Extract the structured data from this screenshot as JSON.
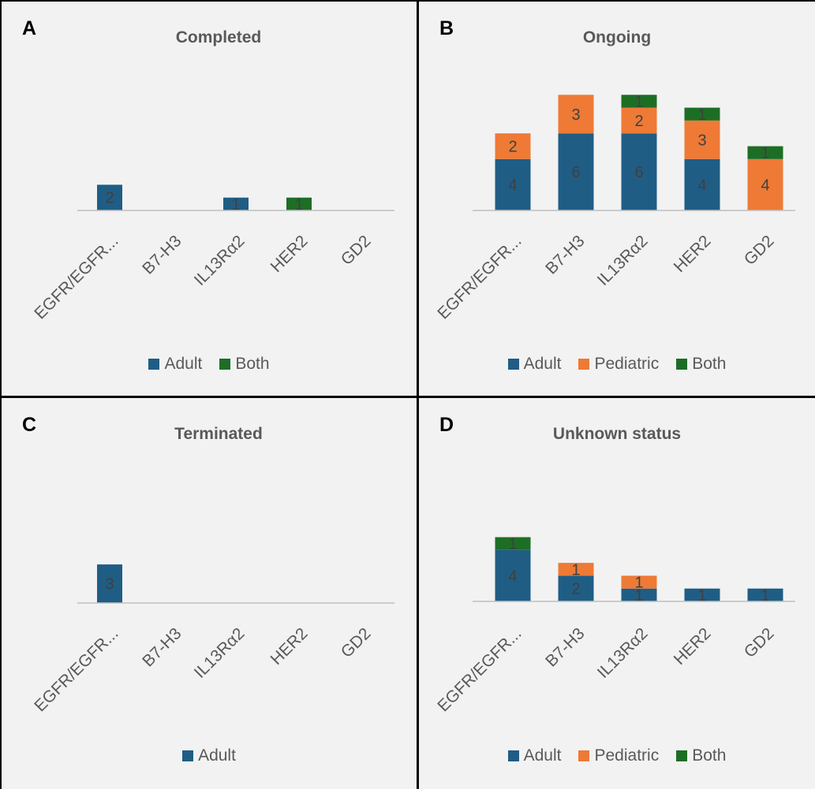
{
  "colors": {
    "adult": "#1f5d85",
    "pediatric": "#ee7a36",
    "both": "#1d6e25",
    "axis": "#bfbfbf",
    "text": "#595959",
    "label": "#404040"
  },
  "panels": [
    {
      "letter": "A",
      "title": "Completed",
      "legend": [
        {
          "key": "adult",
          "label": "Adult"
        },
        {
          "key": "both",
          "label": "Both"
        }
      ]
    },
    {
      "letter": "B",
      "title": "Ongoing",
      "legend": [
        {
          "key": "adult",
          "label": "Adult"
        },
        {
          "key": "pediatric",
          "label": "Pediatric"
        },
        {
          "key": "both",
          "label": "Both"
        }
      ]
    },
    {
      "letter": "C",
      "title": "Terminated",
      "legend": [
        {
          "key": "adult",
          "label": "Adult"
        }
      ]
    },
    {
      "letter": "D",
      "title": "Unknown status",
      "legend": [
        {
          "key": "adult",
          "label": "Adult"
        },
        {
          "key": "pediatric",
          "label": "Pediatric"
        },
        {
          "key": "both",
          "label": "Both"
        }
      ]
    }
  ],
  "chart_data": [
    {
      "type": "bar",
      "stacked": true,
      "title": "Completed",
      "categories": [
        "EGFR/EGFR...",
        "B7-H3",
        "IL13Rα2",
        "HER2",
        "GD2"
      ],
      "series": [
        {
          "name": "Adult",
          "key": "adult",
          "values": [
            2,
            0,
            1,
            0,
            0
          ]
        },
        {
          "name": "Both",
          "key": "both",
          "values": [
            0,
            0,
            0,
            1,
            0
          ]
        }
      ],
      "ylim": [
        0,
        10
      ],
      "legend": "bottom",
      "grid": false
    },
    {
      "type": "bar",
      "stacked": true,
      "title": "Ongoing",
      "categories": [
        "EGFR/EGFR...",
        "B7-H3",
        "IL13Rα2",
        "HER2",
        "GD2"
      ],
      "series": [
        {
          "name": "Adult",
          "key": "adult",
          "values": [
            4,
            6,
            6,
            4,
            0
          ]
        },
        {
          "name": "Pediatric",
          "key": "pediatric",
          "values": [
            2,
            3,
            2,
            3,
            4
          ]
        },
        {
          "name": "Both",
          "key": "both",
          "values": [
            0,
            0,
            1,
            1,
            1
          ]
        }
      ],
      "ylim": [
        0,
        10
      ],
      "legend": "bottom",
      "grid": false
    },
    {
      "type": "bar",
      "stacked": true,
      "title": "Terminated",
      "categories": [
        "EGFR/EGFR...",
        "B7-H3",
        "IL13Rα2",
        "HER2",
        "GD2"
      ],
      "series": [
        {
          "name": "Adult",
          "key": "adult",
          "values": [
            3,
            0,
            0,
            0,
            0
          ]
        }
      ],
      "ylim": [
        0,
        10
      ],
      "legend": "bottom",
      "grid": false
    },
    {
      "type": "bar",
      "stacked": true,
      "title": "Unknown status",
      "categories": [
        "EGFR/EGFR...",
        "B7-H3",
        "IL13Rα2",
        "HER2",
        "GD2"
      ],
      "series": [
        {
          "name": "Adult",
          "key": "adult",
          "values": [
            4,
            2,
            1,
            1,
            1
          ]
        },
        {
          "name": "Pediatric",
          "key": "pediatric",
          "values": [
            0,
            1,
            1,
            0,
            0
          ]
        },
        {
          "name": "Both",
          "key": "both",
          "values": [
            1,
            0,
            0,
            0,
            0
          ]
        }
      ],
      "ylim": [
        0,
        10
      ],
      "legend": "bottom",
      "grid": false
    }
  ]
}
